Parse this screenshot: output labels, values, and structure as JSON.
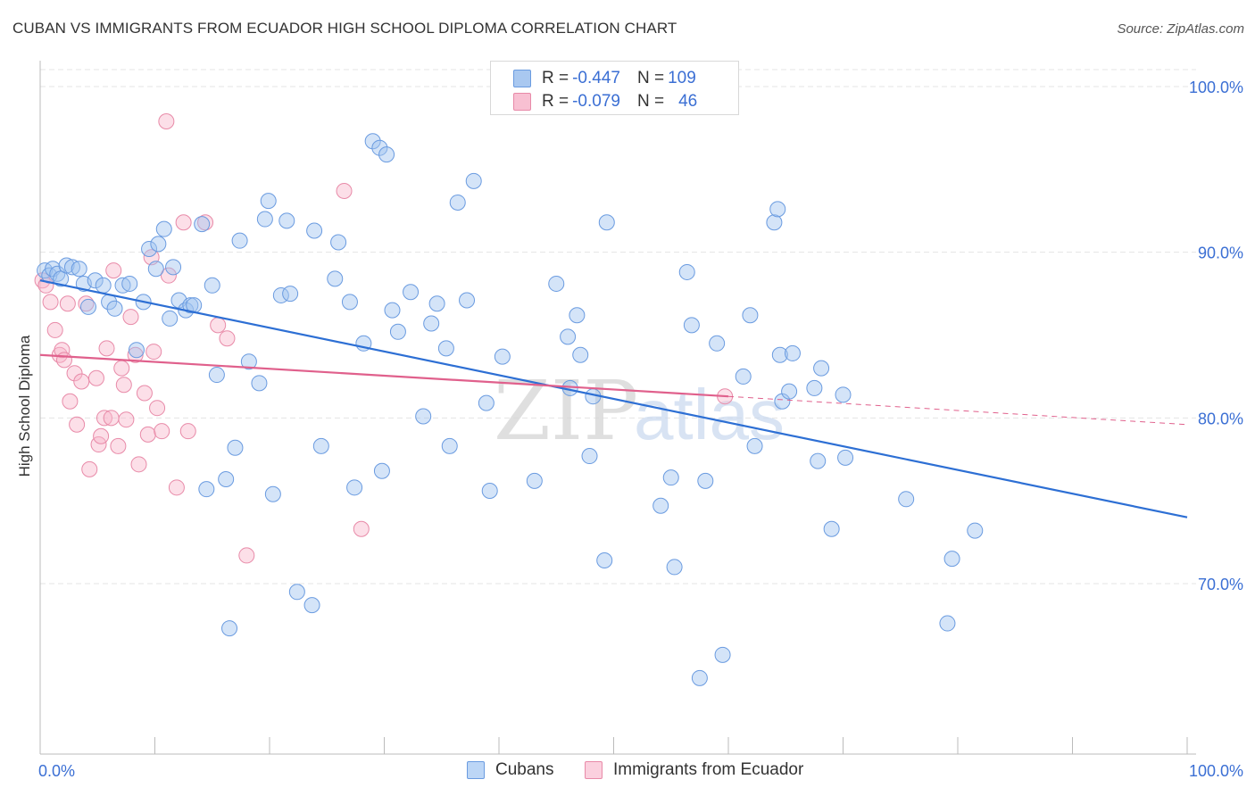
{
  "header": {
    "title": "CUBAN VS IMMIGRANTS FROM ECUADOR HIGH SCHOOL DIPLOMA CORRELATION CHART",
    "source": "Source: ZipAtlas.com"
  },
  "watermark": {
    "zip": "ZIP",
    "atlas": "atlas"
  },
  "legend": {
    "rows": [
      {
        "r_label": "R = ",
        "r_value": "-0.447",
        "n_label": "N = ",
        "n_value": "109",
        "color": "#a9c8f0",
        "border": "#6a9be0"
      },
      {
        "r_label": "R = ",
        "r_value": "-0.079",
        "n_label": "N = ",
        "n_value": "46",
        "color": "#f8c0d2",
        "border": "#e88aa8"
      }
    ]
  },
  "bottom_legend": [
    {
      "label": "Cubans",
      "color": "#bcd6f6",
      "border": "#6a9be0"
    },
    {
      "label": "Immigrants from Ecuador",
      "color": "#fbd0de",
      "border": "#e88aa8"
    }
  ],
  "colors": {
    "cubans_fill": "rgba(160,196,240,0.45)",
    "cubans_stroke": "#6a9be0",
    "cubans_line": "#2d6fd4",
    "ecuador_fill": "rgba(248,184,204,0.45)",
    "ecuador_stroke": "#e88aa8",
    "ecuador_line": "#e0608c",
    "axis_text": "#3b6fd4",
    "grid": "#e4e4e4"
  },
  "chart_data": {
    "type": "scatter",
    "title": "CUBAN VS IMMIGRANTS FROM ECUADOR HIGH SCHOOL DIPLOMA CORRELATION CHART",
    "xlabel": "",
    "ylabel": "High School Diploma",
    "xlim": [
      0,
      100
    ],
    "ylim": [
      60,
      102
    ],
    "x_tick_labels": [
      "0.0%",
      "100.0%"
    ],
    "y_ticks": [
      {
        "value": 100,
        "label": "100.0%"
      },
      {
        "value": 90,
        "label": "90.0%"
      },
      {
        "value": 80,
        "label": "80.0%"
      },
      {
        "value": 70,
        "label": "70.0%"
      }
    ],
    "grid": true,
    "legend_position": "top-center",
    "series": [
      {
        "name": "Cubans",
        "R": -0.447,
        "N": 109,
        "trend": {
          "x": [
            0,
            100
          ],
          "y": [
            88.3,
            74.0
          ]
        },
        "points": [
          [
            0.4,
            88.9
          ],
          [
            0.8,
            88.6
          ],
          [
            1.1,
            89.0
          ],
          [
            1.5,
            88.7
          ],
          [
            1.8,
            88.4
          ],
          [
            2.3,
            89.2
          ],
          [
            2.8,
            89.1
          ],
          [
            3.4,
            89.0
          ],
          [
            3.8,
            88.1
          ],
          [
            4.2,
            86.7
          ],
          [
            4.8,
            88.3
          ],
          [
            5.5,
            88.0
          ],
          [
            6.0,
            87.0
          ],
          [
            6.5,
            86.6
          ],
          [
            7.2,
            88.0
          ],
          [
            7.8,
            88.1
          ],
          [
            8.4,
            84.1
          ],
          [
            9.0,
            87.0
          ],
          [
            9.5,
            90.2
          ],
          [
            10.1,
            89.0
          ],
          [
            10.3,
            90.5
          ],
          [
            10.8,
            91.4
          ],
          [
            11.3,
            86.0
          ],
          [
            11.6,
            89.1
          ],
          [
            12.1,
            87.1
          ],
          [
            12.7,
            86.5
          ],
          [
            13.1,
            86.8
          ],
          [
            13.4,
            86.8
          ],
          [
            14.1,
            91.7
          ],
          [
            14.5,
            75.7
          ],
          [
            15.0,
            88.0
          ],
          [
            15.4,
            82.6
          ],
          [
            16.2,
            76.3
          ],
          [
            16.5,
            67.3
          ],
          [
            17.0,
            78.2
          ],
          [
            17.4,
            90.7
          ],
          [
            18.2,
            83.4
          ],
          [
            19.1,
            82.1
          ],
          [
            19.6,
            92.0
          ],
          [
            19.9,
            93.1
          ],
          [
            20.3,
            75.4
          ],
          [
            21.0,
            87.4
          ],
          [
            21.5,
            91.9
          ],
          [
            21.8,
            87.5
          ],
          [
            22.4,
            69.5
          ],
          [
            23.7,
            68.7
          ],
          [
            23.9,
            91.3
          ],
          [
            24.5,
            78.3
          ],
          [
            25.7,
            88.4
          ],
          [
            26.0,
            90.6
          ],
          [
            27.0,
            87.0
          ],
          [
            27.4,
            75.8
          ],
          [
            28.2,
            84.5
          ],
          [
            29.0,
            96.7
          ],
          [
            29.6,
            96.3
          ],
          [
            29.8,
            76.8
          ],
          [
            30.2,
            95.9
          ],
          [
            30.7,
            86.5
          ],
          [
            31.2,
            85.2
          ],
          [
            32.3,
            87.6
          ],
          [
            33.4,
            80.1
          ],
          [
            34.1,
            85.7
          ],
          [
            34.6,
            86.9
          ],
          [
            35.4,
            84.2
          ],
          [
            35.7,
            78.3
          ],
          [
            36.4,
            93.0
          ],
          [
            37.2,
            87.1
          ],
          [
            37.8,
            94.3
          ],
          [
            38.9,
            80.9
          ],
          [
            39.2,
            75.6
          ],
          [
            40.3,
            83.7
          ],
          [
            43.1,
            76.2
          ],
          [
            45.0,
            88.1
          ],
          [
            46.0,
            84.9
          ],
          [
            46.2,
            81.8
          ],
          [
            46.8,
            86.2
          ],
          [
            47.1,
            83.8
          ],
          [
            47.9,
            77.7
          ],
          [
            48.2,
            81.3
          ],
          [
            49.2,
            71.4
          ],
          [
            49.4,
            91.8
          ],
          [
            54.1,
            74.7
          ],
          [
            55.0,
            76.4
          ],
          [
            55.3,
            71.0
          ],
          [
            56.4,
            88.8
          ],
          [
            56.8,
            85.6
          ],
          [
            57.5,
            64.3
          ],
          [
            58.0,
            76.2
          ],
          [
            59.0,
            84.5
          ],
          [
            59.5,
            65.7
          ],
          [
            61.3,
            82.5
          ],
          [
            61.9,
            86.2
          ],
          [
            62.3,
            78.3
          ],
          [
            64.0,
            91.8
          ],
          [
            64.3,
            92.6
          ],
          [
            64.5,
            83.8
          ],
          [
            64.7,
            81.0
          ],
          [
            65.3,
            81.6
          ],
          [
            65.6,
            83.9
          ],
          [
            67.5,
            81.8
          ],
          [
            67.8,
            77.4
          ],
          [
            68.1,
            83.0
          ],
          [
            69.0,
            73.3
          ],
          [
            70.0,
            81.4
          ],
          [
            70.2,
            77.6
          ],
          [
            75.5,
            75.1
          ],
          [
            79.1,
            67.6
          ],
          [
            79.5,
            71.5
          ],
          [
            81.5,
            73.2
          ]
        ]
      },
      {
        "name": "Immigrants from Ecuador",
        "R": -0.079,
        "N": 46,
        "trend": {
          "x": [
            0,
            60
          ],
          "y": [
            83.8,
            81.3
          ]
        },
        "trend_extension": {
          "x": [
            60,
            100
          ],
          "y": [
            81.3,
            79.6
          ]
        },
        "points": [
          [
            0.2,
            88.3
          ],
          [
            0.5,
            88.0
          ],
          [
            0.9,
            87.0
          ],
          [
            1.3,
            85.3
          ],
          [
            1.7,
            83.8
          ],
          [
            1.9,
            84.1
          ],
          [
            2.1,
            83.5
          ],
          [
            2.4,
            86.9
          ],
          [
            2.6,
            81.0
          ],
          [
            3.0,
            82.7
          ],
          [
            3.2,
            79.6
          ],
          [
            3.6,
            82.2
          ],
          [
            4.0,
            86.9
          ],
          [
            4.3,
            76.9
          ],
          [
            4.9,
            82.4
          ],
          [
            5.1,
            78.4
          ],
          [
            5.3,
            78.9
          ],
          [
            5.6,
            80.0
          ],
          [
            5.8,
            84.2
          ],
          [
            6.2,
            80.0
          ],
          [
            6.4,
            88.9
          ],
          [
            6.8,
            78.3
          ],
          [
            7.1,
            83.0
          ],
          [
            7.3,
            82.0
          ],
          [
            7.5,
            79.9
          ],
          [
            7.9,
            86.1
          ],
          [
            8.3,
            83.8
          ],
          [
            8.6,
            77.2
          ],
          [
            9.1,
            81.5
          ],
          [
            9.4,
            79.0
          ],
          [
            9.7,
            89.7
          ],
          [
            9.9,
            84.0
          ],
          [
            10.2,
            80.6
          ],
          [
            10.6,
            79.2
          ],
          [
            11.0,
            97.9
          ],
          [
            11.2,
            88.6
          ],
          [
            11.9,
            75.8
          ],
          [
            12.5,
            91.8
          ],
          [
            12.9,
            79.2
          ],
          [
            14.4,
            91.8
          ],
          [
            15.5,
            85.6
          ],
          [
            16.3,
            84.8
          ],
          [
            18.0,
            71.7
          ],
          [
            26.5,
            93.7
          ],
          [
            28.0,
            73.3
          ],
          [
            59.7,
            81.3
          ]
        ]
      }
    ]
  }
}
